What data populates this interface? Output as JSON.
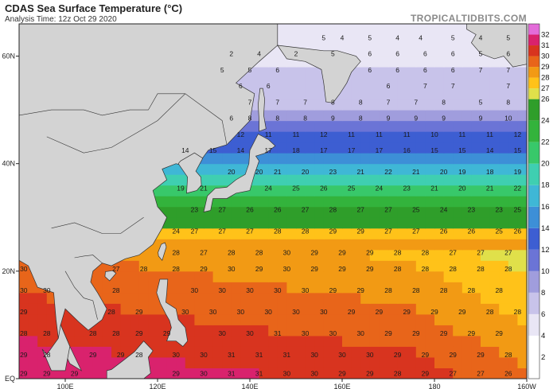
{
  "header": {
    "title": "CDAS Sea Surface Temperature (°C)",
    "subtitle": "Analysis Time: 12z Oct 29 2020",
    "brand": "TROPICALTIDBITS.COM"
  },
  "axes": {
    "lat_labels": [
      "60N",
      "40N",
      "20N",
      "EQ"
    ],
    "lat_values": [
      60,
      40,
      20,
      0
    ],
    "lon_labels": [
      "100E",
      "120E",
      "140E",
      "160E",
      "180",
      "160W"
    ],
    "lon_values": [
      100,
      120,
      140,
      160,
      180,
      200
    ],
    "lon_range": [
      90,
      200
    ],
    "lat_range": [
      0,
      66
    ]
  },
  "colorbar": {
    "values": [
      2,
      4,
      6,
      8,
      10,
      12,
      14,
      16,
      18,
      20,
      22,
      24,
      26,
      28,
      30,
      32
    ],
    "labels": [
      "2",
      "4",
      "6",
      "8",
      "10",
      "12",
      "14",
      "16",
      "18",
      "20",
      "22",
      "24",
      "26",
      "28",
      "30",
      "32"
    ],
    "label_values": [
      2,
      4,
      6,
      8,
      10,
      12,
      14,
      16,
      18,
      20,
      22,
      24,
      26,
      27,
      28,
      29,
      30,
      31,
      32
    ],
    "label_texts": [
      "2",
      "4",
      "6",
      "8",
      "10",
      "12",
      "14",
      "16",
      "18",
      "20",
      "22",
      "24",
      "26",
      "27",
      "28",
      "29",
      "30",
      "31",
      "32"
    ],
    "colors": {
      "2": "#ffffff",
      "4": "#e9e6f5",
      "6": "#c8c3ea",
      "8": "#a09ddd",
      "10": "#6b74d6",
      "12": "#3d5ed2",
      "14": "#3d8fd7",
      "16": "#3fb7d6",
      "18": "#3fcfb1",
      "20": "#38c86a",
      "22": "#33b33c",
      "24": "#2f9e2a",
      "26": "#e0e04a",
      "27": "#ffc219",
      "28": "#f29a14",
      "29": "#e8651a",
      "30": "#d8341f",
      "31": "#d9226d",
      "32": "#e36cd9"
    }
  },
  "land_colors": {
    "land": "#d3d3d3",
    "ocean_border": "#333333"
  },
  "sst_labels": [
    {
      "lon": 156,
      "lat": 63,
      "v": "5"
    },
    {
      "lon": 160,
      "lat": 63,
      "v": "4"
    },
    {
      "lon": 166,
      "lat": 63,
      "v": "5"
    },
    {
      "lon": 172,
      "lat": 63,
      "v": "4"
    },
    {
      "lon": 177,
      "lat": 63,
      "v": "4"
    },
    {
      "lon": 184,
      "lat": 63,
      "v": "5"
    },
    {
      "lon": 190,
      "lat": 63,
      "v": "4"
    },
    {
      "lon": 196,
      "lat": 63,
      "v": "5"
    },
    {
      "lon": 136,
      "lat": 60,
      "v": "2"
    },
    {
      "lon": 142,
      "lat": 60,
      "v": "4"
    },
    {
      "lon": 150,
      "lat": 60,
      "v": "2"
    },
    {
      "lon": 158,
      "lat": 60,
      "v": "5"
    },
    {
      "lon": 166,
      "lat": 60,
      "v": "6"
    },
    {
      "lon": 172,
      "lat": 60,
      "v": "6"
    },
    {
      "lon": 178,
      "lat": 60,
      "v": "6"
    },
    {
      "lon": 184,
      "lat": 60,
      "v": "6"
    },
    {
      "lon": 190,
      "lat": 60,
      "v": "5"
    },
    {
      "lon": 196,
      "lat": 60,
      "v": "6"
    },
    {
      "lon": 134,
      "lat": 57,
      "v": "5"
    },
    {
      "lon": 140,
      "lat": 57,
      "v": "5"
    },
    {
      "lon": 146,
      "lat": 57,
      "v": "6"
    },
    {
      "lon": 166,
      "lat": 57,
      "v": "6"
    },
    {
      "lon": 172,
      "lat": 57,
      "v": "6"
    },
    {
      "lon": 178,
      "lat": 57,
      "v": "6"
    },
    {
      "lon": 184,
      "lat": 57,
      "v": "6"
    },
    {
      "lon": 190,
      "lat": 57,
      "v": "7"
    },
    {
      "lon": 196,
      "lat": 57,
      "v": "7"
    },
    {
      "lon": 138,
      "lat": 54,
      "v": "6"
    },
    {
      "lon": 144,
      "lat": 54,
      "v": "6"
    },
    {
      "lon": 170,
      "lat": 54,
      "v": "6"
    },
    {
      "lon": 178,
      "lat": 54,
      "v": "7"
    },
    {
      "lon": 184,
      "lat": 54,
      "v": "7"
    },
    {
      "lon": 196,
      "lat": 54,
      "v": "7"
    },
    {
      "lon": 140,
      "lat": 51,
      "v": "7"
    },
    {
      "lon": 146,
      "lat": 51,
      "v": "7"
    },
    {
      "lon": 152,
      "lat": 51,
      "v": "7"
    },
    {
      "lon": 158,
      "lat": 51,
      "v": "8"
    },
    {
      "lon": 164,
      "lat": 51,
      "v": "8"
    },
    {
      "lon": 170,
      "lat": 51,
      "v": "7"
    },
    {
      "lon": 176,
      "lat": 51,
      "v": "7"
    },
    {
      "lon": 182,
      "lat": 51,
      "v": "8"
    },
    {
      "lon": 190,
      "lat": 51,
      "v": "5"
    },
    {
      "lon": 196,
      "lat": 51,
      "v": "8"
    },
    {
      "lon": 136,
      "lat": 48,
      "v": "6"
    },
    {
      "lon": 140,
      "lat": 48,
      "v": "8"
    },
    {
      "lon": 146,
      "lat": 48,
      "v": "8"
    },
    {
      "lon": 152,
      "lat": 48,
      "v": "8"
    },
    {
      "lon": 158,
      "lat": 48,
      "v": "9"
    },
    {
      "lon": 164,
      "lat": 48,
      "v": "8"
    },
    {
      "lon": 170,
      "lat": 48,
      "v": "9"
    },
    {
      "lon": 176,
      "lat": 48,
      "v": "9"
    },
    {
      "lon": 182,
      "lat": 48,
      "v": "9"
    },
    {
      "lon": 190,
      "lat": 48,
      "v": "9"
    },
    {
      "lon": 196,
      "lat": 48,
      "v": "10"
    },
    {
      "lon": 138,
      "lat": 45,
      "v": "12"
    },
    {
      "lon": 144,
      "lat": 45,
      "v": "11"
    },
    {
      "lon": 150,
      "lat": 45,
      "v": "11"
    },
    {
      "lon": 156,
      "lat": 45,
      "v": "12"
    },
    {
      "lon": 162,
      "lat": 45,
      "v": "11"
    },
    {
      "lon": 168,
      "lat": 45,
      "v": "11"
    },
    {
      "lon": 174,
      "lat": 45,
      "v": "11"
    },
    {
      "lon": 180,
      "lat": 45,
      "v": "10"
    },
    {
      "lon": 186,
      "lat": 45,
      "v": "11"
    },
    {
      "lon": 192,
      "lat": 45,
      "v": "11"
    },
    {
      "lon": 198,
      "lat": 45,
      "v": "12"
    },
    {
      "lon": 126,
      "lat": 42,
      "v": "14"
    },
    {
      "lon": 132,
      "lat": 42,
      "v": "15"
    },
    {
      "lon": 138,
      "lat": 42,
      "v": "14"
    },
    {
      "lon": 144,
      "lat": 42,
      "v": "17"
    },
    {
      "lon": 150,
      "lat": 42,
      "v": "18"
    },
    {
      "lon": 156,
      "lat": 42,
      "v": "17"
    },
    {
      "lon": 162,
      "lat": 42,
      "v": "17"
    },
    {
      "lon": 168,
      "lat": 42,
      "v": "17"
    },
    {
      "lon": 174,
      "lat": 42,
      "v": "16"
    },
    {
      "lon": 180,
      "lat": 42,
      "v": "15"
    },
    {
      "lon": 186,
      "lat": 42,
      "v": "15"
    },
    {
      "lon": 192,
      "lat": 42,
      "v": "14"
    },
    {
      "lon": 198,
      "lat": 42,
      "v": "15"
    },
    {
      "lon": 136,
      "lat": 38,
      "v": "20"
    },
    {
      "lon": 142,
      "lat": 38,
      "v": "20"
    },
    {
      "lon": 146,
      "lat": 38,
      "v": "21"
    },
    {
      "lon": 152,
      "lat": 38,
      "v": "20"
    },
    {
      "lon": 158,
      "lat": 38,
      "v": "23"
    },
    {
      "lon": 164,
      "lat": 38,
      "v": "21"
    },
    {
      "lon": 170,
      "lat": 38,
      "v": "22"
    },
    {
      "lon": 176,
      "lat": 38,
      "v": "21"
    },
    {
      "lon": 182,
      "lat": 38,
      "v": "20"
    },
    {
      "lon": 186,
      "lat": 38,
      "v": "19"
    },
    {
      "lon": 192,
      "lat": 38,
      "v": "18"
    },
    {
      "lon": 198,
      "lat": 38,
      "v": "19"
    },
    {
      "lon": 125,
      "lat": 35,
      "v": "19"
    },
    {
      "lon": 130,
      "lat": 35,
      "v": "21"
    },
    {
      "lon": 144,
      "lat": 35,
      "v": "24"
    },
    {
      "lon": 150,
      "lat": 35,
      "v": "25"
    },
    {
      "lon": 156,
      "lat": 35,
      "v": "26"
    },
    {
      "lon": 162,
      "lat": 35,
      "v": "25"
    },
    {
      "lon": 168,
      "lat": 35,
      "v": "24"
    },
    {
      "lon": 174,
      "lat": 35,
      "v": "23"
    },
    {
      "lon": 180,
      "lat": 35,
      "v": "21"
    },
    {
      "lon": 186,
      "lat": 35,
      "v": "20"
    },
    {
      "lon": 192,
      "lat": 35,
      "v": "21"
    },
    {
      "lon": 198,
      "lat": 35,
      "v": "22"
    },
    {
      "lon": 128,
      "lat": 31,
      "v": "23"
    },
    {
      "lon": 134,
      "lat": 31,
      "v": "27"
    },
    {
      "lon": 140,
      "lat": 31,
      "v": "26"
    },
    {
      "lon": 146,
      "lat": 31,
      "v": "26"
    },
    {
      "lon": 152,
      "lat": 31,
      "v": "27"
    },
    {
      "lon": 158,
      "lat": 31,
      "v": "28"
    },
    {
      "lon": 164,
      "lat": 31,
      "v": "27"
    },
    {
      "lon": 170,
      "lat": 31,
      "v": "27"
    },
    {
      "lon": 176,
      "lat": 31,
      "v": "25"
    },
    {
      "lon": 182,
      "lat": 31,
      "v": "24"
    },
    {
      "lon": 188,
      "lat": 31,
      "v": "23"
    },
    {
      "lon": 194,
      "lat": 31,
      "v": "23"
    },
    {
      "lon": 198,
      "lat": 31,
      "v": "25"
    },
    {
      "lon": 124,
      "lat": 27,
      "v": "24"
    },
    {
      "lon": 128,
      "lat": 27,
      "v": "27"
    },
    {
      "lon": 134,
      "lat": 27,
      "v": "27"
    },
    {
      "lon": 140,
      "lat": 27,
      "v": "27"
    },
    {
      "lon": 146,
      "lat": 27,
      "v": "28"
    },
    {
      "lon": 152,
      "lat": 27,
      "v": "28"
    },
    {
      "lon": 158,
      "lat": 27,
      "v": "29"
    },
    {
      "lon": 164,
      "lat": 27,
      "v": "29"
    },
    {
      "lon": 170,
      "lat": 27,
      "v": "27"
    },
    {
      "lon": 176,
      "lat": 27,
      "v": "27"
    },
    {
      "lon": 182,
      "lat": 27,
      "v": "26"
    },
    {
      "lon": 188,
      "lat": 27,
      "v": "26"
    },
    {
      "lon": 194,
      "lat": 27,
      "v": "25"
    },
    {
      "lon": 198,
      "lat": 27,
      "v": "26"
    },
    {
      "lon": 124,
      "lat": 23,
      "v": "28"
    },
    {
      "lon": 130,
      "lat": 23,
      "v": "27"
    },
    {
      "lon": 136,
      "lat": 23,
      "v": "28"
    },
    {
      "lon": 142,
      "lat": 23,
      "v": "28"
    },
    {
      "lon": 148,
      "lat": 23,
      "v": "30"
    },
    {
      "lon": 154,
      "lat": 23,
      "v": "29"
    },
    {
      "lon": 160,
      "lat": 23,
      "v": "29"
    },
    {
      "lon": 166,
      "lat": 23,
      "v": "29"
    },
    {
      "lon": 172,
      "lat": 23,
      "v": "28"
    },
    {
      "lon": 178,
      "lat": 23,
      "v": "28"
    },
    {
      "lon": 184,
      "lat": 23,
      "v": "27"
    },
    {
      "lon": 190,
      "lat": 23,
      "v": "27"
    },
    {
      "lon": 196,
      "lat": 23,
      "v": "27"
    },
    {
      "lon": 200,
      "lat": 23,
      "v": "27"
    },
    {
      "lon": 91,
      "lat": 20,
      "v": "30"
    },
    {
      "lon": 111,
      "lat": 20,
      "v": "27"
    },
    {
      "lon": 117,
      "lat": 20,
      "v": "28"
    },
    {
      "lon": 124,
      "lat": 20,
      "v": "28"
    },
    {
      "lon": 130,
      "lat": 20,
      "v": "29"
    },
    {
      "lon": 136,
      "lat": 20,
      "v": "30"
    },
    {
      "lon": 142,
      "lat": 20,
      "v": "29"
    },
    {
      "lon": 148,
      "lat": 20,
      "v": "30"
    },
    {
      "lon": 154,
      "lat": 20,
      "v": "29"
    },
    {
      "lon": 160,
      "lat": 20,
      "v": "29"
    },
    {
      "lon": 166,
      "lat": 20,
      "v": "29"
    },
    {
      "lon": 172,
      "lat": 20,
      "v": "28"
    },
    {
      "lon": 178,
      "lat": 20,
      "v": "28"
    },
    {
      "lon": 184,
      "lat": 20,
      "v": "28"
    },
    {
      "lon": 190,
      "lat": 20,
      "v": "28"
    },
    {
      "lon": 196,
      "lat": 20,
      "v": "28"
    },
    {
      "lon": 91,
      "lat": 16,
      "v": "30"
    },
    {
      "lon": 96,
      "lat": 16,
      "v": "30"
    },
    {
      "lon": 111,
      "lat": 16,
      "v": "28"
    },
    {
      "lon": 128,
      "lat": 16,
      "v": "30"
    },
    {
      "lon": 134,
      "lat": 16,
      "v": "30"
    },
    {
      "lon": 140,
      "lat": 16,
      "v": "30"
    },
    {
      "lon": 146,
      "lat": 16,
      "v": "30"
    },
    {
      "lon": 152,
      "lat": 16,
      "v": "30"
    },
    {
      "lon": 158,
      "lat": 16,
      "v": "29"
    },
    {
      "lon": 164,
      "lat": 16,
      "v": "29"
    },
    {
      "lon": 170,
      "lat": 16,
      "v": "28"
    },
    {
      "lon": 176,
      "lat": 16,
      "v": "28"
    },
    {
      "lon": 182,
      "lat": 16,
      "v": "28"
    },
    {
      "lon": 188,
      "lat": 16,
      "v": "28"
    },
    {
      "lon": 194,
      "lat": 16,
      "v": "28"
    },
    {
      "lon": 200,
      "lat": 16,
      "v": "27"
    },
    {
      "lon": 91,
      "lat": 12,
      "v": "29"
    },
    {
      "lon": 110,
      "lat": 12,
      "v": "28"
    },
    {
      "lon": 116,
      "lat": 12,
      "v": "29"
    },
    {
      "lon": 126,
      "lat": 12,
      "v": "30"
    },
    {
      "lon": 132,
      "lat": 12,
      "v": "30"
    },
    {
      "lon": 138,
      "lat": 12,
      "v": "30"
    },
    {
      "lon": 144,
      "lat": 12,
      "v": "30"
    },
    {
      "lon": 150,
      "lat": 12,
      "v": "30"
    },
    {
      "lon": 156,
      "lat": 12,
      "v": "30"
    },
    {
      "lon": 162,
      "lat": 12,
      "v": "29"
    },
    {
      "lon": 168,
      "lat": 12,
      "v": "29"
    },
    {
      "lon": 174,
      "lat": 12,
      "v": "29"
    },
    {
      "lon": 180,
      "lat": 12,
      "v": "29"
    },
    {
      "lon": 186,
      "lat": 12,
      "v": "29"
    },
    {
      "lon": 192,
      "lat": 12,
      "v": "28"
    },
    {
      "lon": 198,
      "lat": 12,
      "v": "28"
    },
    {
      "lon": 91,
      "lat": 8,
      "v": "28"
    },
    {
      "lon": 96,
      "lat": 8,
      "v": "28"
    },
    {
      "lon": 106,
      "lat": 8,
      "v": "28"
    },
    {
      "lon": 111,
      "lat": 8,
      "v": "28"
    },
    {
      "lon": 116,
      "lat": 8,
      "v": "29"
    },
    {
      "lon": 122,
      "lat": 8,
      "v": "29"
    },
    {
      "lon": 134,
      "lat": 8,
      "v": "30"
    },
    {
      "lon": 140,
      "lat": 8,
      "v": "30"
    },
    {
      "lon": 146,
      "lat": 8,
      "v": "31"
    },
    {
      "lon": 152,
      "lat": 8,
      "v": "30"
    },
    {
      "lon": 158,
      "lat": 8,
      "v": "30"
    },
    {
      "lon": 164,
      "lat": 8,
      "v": "30"
    },
    {
      "lon": 170,
      "lat": 8,
      "v": "29"
    },
    {
      "lon": 176,
      "lat": 8,
      "v": "29"
    },
    {
      "lon": 182,
      "lat": 8,
      "v": "29"
    },
    {
      "lon": 188,
      "lat": 8,
      "v": "29"
    },
    {
      "lon": 194,
      "lat": 8,
      "v": "29"
    },
    {
      "lon": 200,
      "lat": 8,
      "v": "28"
    },
    {
      "lon": 91,
      "lat": 4,
      "v": "29"
    },
    {
      "lon": 96,
      "lat": 4,
      "v": "28"
    },
    {
      "lon": 106,
      "lat": 4,
      "v": "29"
    },
    {
      "lon": 112,
      "lat": 4,
      "v": "29"
    },
    {
      "lon": 116,
      "lat": 4,
      "v": "28"
    },
    {
      "lon": 124,
      "lat": 4,
      "v": "30"
    },
    {
      "lon": 130,
      "lat": 4,
      "v": "30"
    },
    {
      "lon": 136,
      "lat": 4,
      "v": "31"
    },
    {
      "lon": 142,
      "lat": 4,
      "v": "31"
    },
    {
      "lon": 148,
      "lat": 4,
      "v": "31"
    },
    {
      "lon": 154,
      "lat": 4,
      "v": "30"
    },
    {
      "lon": 160,
      "lat": 4,
      "v": "30"
    },
    {
      "lon": 166,
      "lat": 4,
      "v": "30"
    },
    {
      "lon": 172,
      "lat": 4,
      "v": "29"
    },
    {
      "lon": 178,
      "lat": 4,
      "v": "29"
    },
    {
      "lon": 184,
      "lat": 4,
      "v": "29"
    },
    {
      "lon": 190,
      "lat": 4,
      "v": "29"
    },
    {
      "lon": 196,
      "lat": 4,
      "v": "28"
    },
    {
      "lon": 91,
      "lat": 0.5,
      "v": "29"
    },
    {
      "lon": 96,
      "lat": 0.5,
      "v": "29"
    },
    {
      "lon": 102,
      "lat": 0.5,
      "v": "29"
    },
    {
      "lon": 124,
      "lat": 0.5,
      "v": "29"
    },
    {
      "lon": 130,
      "lat": 0.5,
      "v": "30"
    },
    {
      "lon": 136,
      "lat": 0.5,
      "v": "31"
    },
    {
      "lon": 142,
      "lat": 0.5,
      "v": "31"
    },
    {
      "lon": 148,
      "lat": 0.5,
      "v": "30"
    },
    {
      "lon": 154,
      "lat": 0.5,
      "v": "30"
    },
    {
      "lon": 160,
      "lat": 0.5,
      "v": "29"
    },
    {
      "lon": 166,
      "lat": 0.5,
      "v": "29"
    },
    {
      "lon": 172,
      "lat": 0.5,
      "v": "28"
    },
    {
      "lon": 178,
      "lat": 0.5,
      "v": "29"
    },
    {
      "lon": 184,
      "lat": 0.5,
      "v": "27"
    },
    {
      "lon": 190,
      "lat": 0.5,
      "v": "27"
    },
    {
      "lon": 196,
      "lat": 0.5,
      "v": "26"
    },
    {
      "lon": 200,
      "lat": 0.5,
      "v": "26"
    }
  ]
}
